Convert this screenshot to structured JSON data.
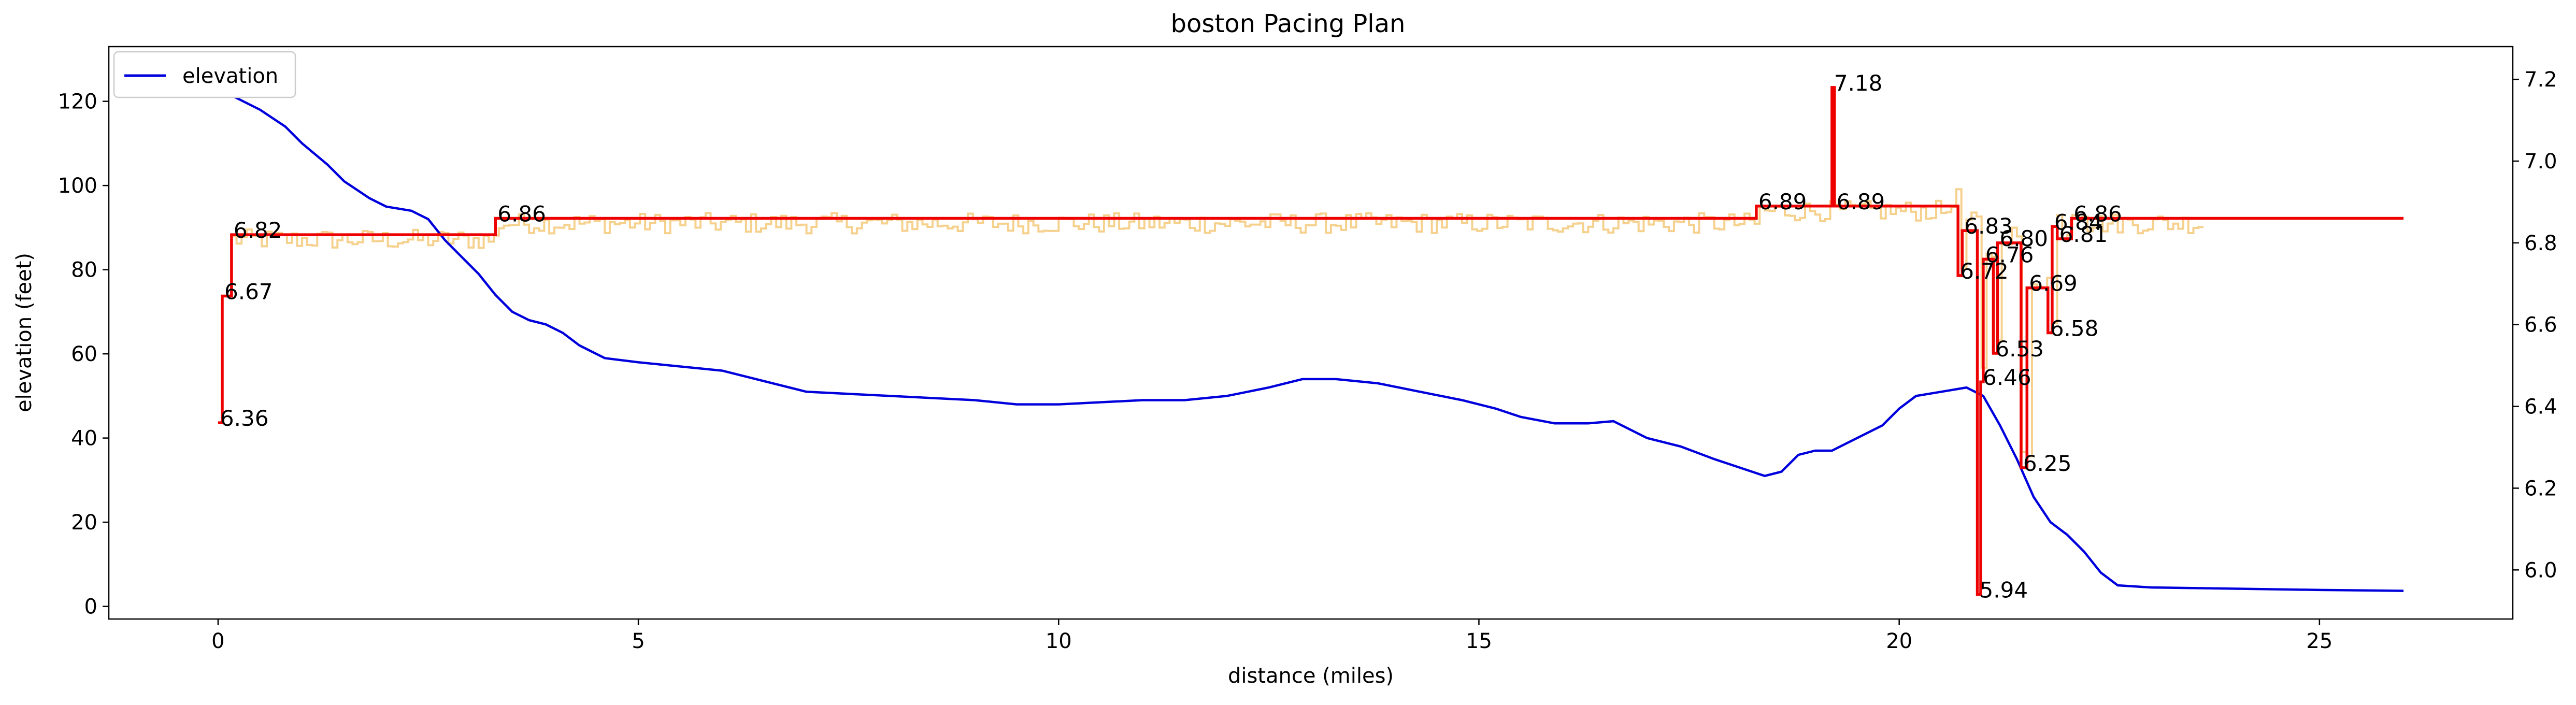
{
  "chart_data": {
    "type": "line",
    "title": "boston Pacing Plan",
    "xlabel": "distance (miles)",
    "ylabel": "elevation (feet)",
    "xlim": [
      -1.3,
      27.3
    ],
    "ylim_left": [
      -3,
      133
    ],
    "ylim_right": [
      5.88,
      7.28
    ],
    "grid": false,
    "legend": {
      "placement": "top-left",
      "entries": [
        "elevation"
      ]
    },
    "x_ticks": [
      0,
      5,
      10,
      15,
      20,
      25
    ],
    "y_ticks_left": [
      0,
      20,
      40,
      60,
      80,
      100,
      120
    ],
    "y_ticks_right": [
      "6.0",
      "6.2",
      "6.4",
      "6.6",
      "6.8",
      "7.0",
      "7.2"
    ],
    "colors": {
      "elevation": "#0000dd",
      "pace_plan": "#ee0000",
      "pace_raw": "#f5c97a"
    },
    "series": [
      {
        "name": "elevation",
        "axis": "left",
        "x": [
          0,
          0.2,
          0.5,
          0.8,
          1.0,
          1.3,
          1.5,
          1.8,
          2.0,
          2.3,
          2.5,
          2.7,
          2.9,
          3.1,
          3.3,
          3.5,
          3.7,
          3.9,
          4.1,
          4.3,
          4.6,
          5.0,
          5.5,
          6.0,
          7.0,
          8.0,
          9.0,
          9.5,
          10.0,
          11.0,
          11.5,
          12.0,
          12.5,
          12.9,
          13.3,
          13.8,
          14.3,
          14.8,
          15.2,
          15.5,
          15.9,
          16.3,
          16.6,
          17.0,
          17.4,
          17.8,
          18.1,
          18.4,
          18.6,
          18.8,
          19.0,
          19.2,
          19.5,
          19.8,
          20.0,
          20.2,
          20.5,
          20.8,
          21.0,
          21.2,
          21.4,
          21.6,
          21.8,
          22.0,
          22.2,
          22.4,
          22.6,
          23.0,
          24.0,
          25.0,
          26.0
        ],
        "values": [
          125,
          121,
          118,
          114,
          110,
          105,
          101,
          97,
          95,
          94,
          92,
          87,
          83,
          79,
          74,
          70,
          68,
          67,
          65,
          62,
          59,
          58,
          57,
          56,
          51,
          50,
          49,
          48,
          48,
          49,
          49,
          50,
          52,
          54,
          54,
          53,
          51,
          49,
          47,
          45,
          43.5,
          43.5,
          44,
          40,
          38,
          35,
          33,
          31,
          32,
          36,
          37,
          37,
          40,
          43,
          47,
          50,
          51,
          52,
          50,
          43,
          35,
          26,
          20,
          17,
          13,
          8,
          5,
          4.5,
          4.2,
          3.9,
          3.7
        ]
      },
      {
        "name": "",
        "axis": "right",
        "step": true,
        "x": [
          0,
          0.05,
          0.16,
          3.3,
          18.3,
          19.2,
          19.23,
          20.7,
          20.75,
          20.93,
          20.97,
          21.0,
          21.12,
          21.17,
          21.22,
          21.45,
          21.52,
          21.58,
          21.77,
          21.82,
          21.88,
          22.05,
          22.3,
          26.0
        ],
        "values": [
          6.36,
          6.67,
          6.82,
          6.86,
          6.89,
          7.18,
          6.89,
          6.72,
          6.83,
          5.94,
          6.46,
          6.76,
          6.53,
          6.8,
          6.8,
          6.25,
          6.69,
          6.69,
          6.58,
          6.84,
          6.81,
          6.86,
          6.86,
          6.86
        ]
      }
    ],
    "annotations": [
      {
        "text": "6.36",
        "x": 0,
        "y": 6.36
      },
      {
        "text": "6.67",
        "x": 0.05,
        "y": 6.67
      },
      {
        "text": "6.82",
        "x": 0.16,
        "y": 6.82
      },
      {
        "text": "6.86",
        "x": 3.3,
        "y": 6.86
      },
      {
        "text": "6.89",
        "x": 18.3,
        "y": 6.89
      },
      {
        "text": "7.18",
        "x": 19.2,
        "y": 7.18
      },
      {
        "text": "6.89",
        "x": 19.23,
        "y": 6.89
      },
      {
        "text": "6.83",
        "x": 20.75,
        "y": 6.83
      },
      {
        "text": "6.72",
        "x": 20.7,
        "y": 6.72
      },
      {
        "text": "6.76",
        "x": 21.0,
        "y": 6.76
      },
      {
        "text": "6.80",
        "x": 21.17,
        "y": 6.8
      },
      {
        "text": "6.69",
        "x": 21.52,
        "y": 6.69
      },
      {
        "text": "6.53",
        "x": 21.12,
        "y": 6.53
      },
      {
        "text": "6.46",
        "x": 20.97,
        "y": 6.46
      },
      {
        "text": "6.25",
        "x": 21.45,
        "y": 6.25
      },
      {
        "text": "5.94",
        "x": 20.93,
        "y": 5.94
      },
      {
        "text": "6.84",
        "x": 21.82,
        "y": 6.84
      },
      {
        "text": "6.81",
        "x": 21.88,
        "y": 6.81
      },
      {
        "text": "6.58",
        "x": 21.77,
        "y": 6.58
      },
      {
        "text": "6.86",
        "x": 22.05,
        "y": 6.86
      }
    ]
  }
}
